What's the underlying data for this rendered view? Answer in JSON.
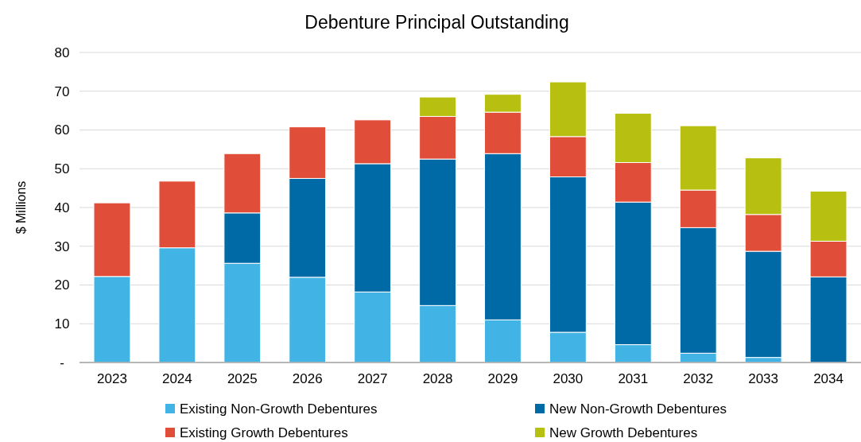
{
  "chart_data": {
    "type": "bar",
    "title": "Debenture Principal Outstanding",
    "ylabel": "$ Millions",
    "stacked": true,
    "grid": "y",
    "legend": "bottom",
    "categories": [
      "2023",
      "2024",
      "2025",
      "2026",
      "2027",
      "2028",
      "2029",
      "2030",
      "2031",
      "2032",
      "2033",
      "2034"
    ],
    "ylim": [
      0,
      80
    ],
    "yticks": [
      {
        "value": 0,
        "label": "-"
      },
      10,
      20,
      30,
      40,
      50,
      60,
      70,
      80
    ],
    "series": [
      {
        "name": "Existing Non-Growth Debentures",
        "color": "#41b3e4",
        "values": [
          22.2,
          29.6,
          25.6,
          22.0,
          18.2,
          14.7,
          11.0,
          7.8,
          4.6,
          2.4,
          1.3,
          0
        ]
      },
      {
        "name": "New Non-Growth Debentures",
        "color": "#006aa7",
        "values": [
          0,
          0,
          13.0,
          25.5,
          33.1,
          37.8,
          42.9,
          40.1,
          36.8,
          32.4,
          27.4,
          22.1
        ]
      },
      {
        "name": "Existing Growth Debentures",
        "color": "#e04e39",
        "values": [
          19.0,
          17.2,
          15.3,
          13.3,
          11.3,
          11.0,
          10.7,
          10.4,
          10.2,
          9.7,
          9.5,
          9.2
        ]
      },
      {
        "name": "New Growth Debentures",
        "color": "#b7bf10",
        "values": [
          0,
          0,
          0,
          0,
          0,
          5.0,
          4.6,
          14.1,
          12.7,
          16.6,
          14.6,
          12.9
        ]
      }
    ]
  }
}
